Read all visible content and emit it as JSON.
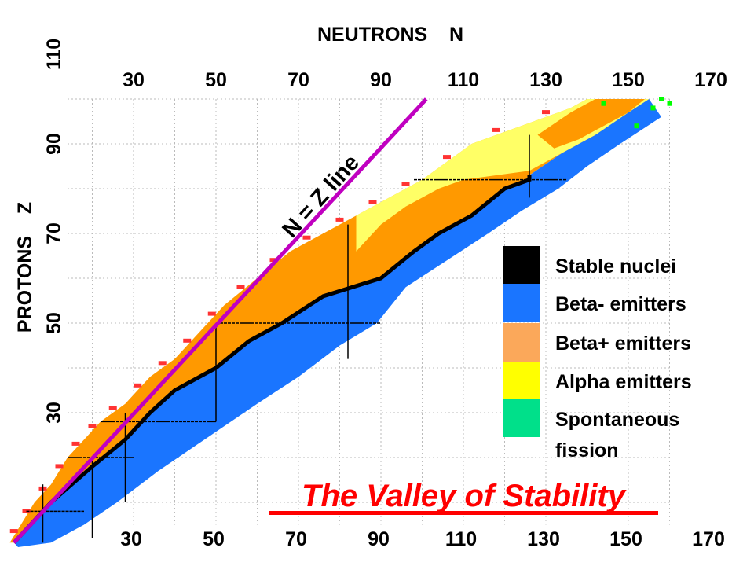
{
  "chart_data": {
    "type": "heatmap",
    "title": "The Valley of Stability",
    "xlabel": "NEUTRONS    N",
    "ylabel": "PROTONS    Z",
    "xlim": [
      0,
      170
    ],
    "ylim": [
      0,
      110
    ],
    "x_ticks_top": [
      "30",
      "50",
      "70",
      "90",
      "110",
      "130",
      "150",
      "170"
    ],
    "x_ticks_bottom": [
      "30",
      "50",
      "70",
      "90",
      "110",
      "130",
      "150",
      "170"
    ],
    "y_ticks": [
      "30",
      "50",
      "70",
      "90",
      "110"
    ],
    "grid": true,
    "annotation": "N = Z line",
    "nz_line": [
      [
        1,
        1
      ],
      [
        101,
        100
      ]
    ],
    "legend_position": "right",
    "legend": [
      {
        "label": "Stable nuclei",
        "color": "#000000"
      },
      {
        "label": "Beta- emitters",
        "color": "#1a75ff"
      },
      {
        "label": "Beta+ emitters",
        "color": "#fba85a"
      },
      {
        "label": "Alpha emitters",
        "color": "#ffff00"
      },
      {
        "label": "Spontaneous",
        "label2": "fission",
        "color": "#00e08a"
      }
    ],
    "region_colors": {
      "beta_plus": "#ff9900",
      "beta_minus": "#1a75ff",
      "alpha": "#ffff66",
      "stable": "#000000",
      "fission": "#00ff00",
      "proton_emitters": "#ff3333",
      "nz_line": "#c000c0",
      "title": "#ff0000"
    },
    "proton_rich_edge": [
      [
        0,
        1
      ],
      [
        2,
        4
      ],
      [
        6,
        10
      ],
      [
        10,
        14
      ],
      [
        14,
        20
      ],
      [
        18,
        24
      ],
      [
        22,
        28
      ],
      [
        28,
        32
      ],
      [
        34,
        38
      ],
      [
        40,
        42
      ],
      [
        46,
        48
      ],
      [
        52,
        54
      ],
      [
        60,
        60
      ],
      [
        68,
        66
      ],
      [
        76,
        70
      ],
      [
        84,
        74
      ],
      [
        92,
        78
      ],
      [
        100,
        82
      ],
      [
        112,
        90
      ],
      [
        124,
        94
      ],
      [
        136,
        98
      ],
      [
        140,
        100
      ],
      [
        163,
        100
      ]
    ],
    "neutron_rich_edge": [
      [
        163,
        100
      ],
      [
        158,
        96
      ],
      [
        148,
        90
      ],
      [
        140,
        85
      ],
      [
        133,
        80
      ],
      [
        124,
        75
      ],
      [
        116,
        70
      ],
      [
        106,
        64
      ],
      [
        96,
        58
      ],
      [
        89,
        50
      ],
      [
        80,
        45
      ],
      [
        70,
        38
      ],
      [
        60,
        32
      ],
      [
        52,
        27
      ],
      [
        44,
        22
      ],
      [
        36,
        17
      ],
      [
        26,
        10
      ],
      [
        18,
        5
      ],
      [
        10,
        1
      ],
      [
        2,
        0
      ]
    ],
    "stable_line": [
      [
        1,
        1
      ],
      [
        10,
        10
      ],
      [
        20,
        18
      ],
      [
        28,
        24
      ],
      [
        34,
        30
      ],
      [
        40,
        35
      ],
      [
        50,
        40
      ],
      [
        58,
        46
      ],
      [
        66,
        50
      ],
      [
        76,
        56
      ],
      [
        90,
        60
      ],
      [
        98,
        66
      ],
      [
        104,
        70
      ],
      [
        112,
        74
      ],
      [
        120,
        80
      ],
      [
        126,
        82
      ],
      [
        126,
        83
      ]
    ],
    "beta_minus_heavy_boundary": [
      [
        126,
        83
      ],
      [
        134,
        88
      ],
      [
        142,
        92
      ],
      [
        150,
        97
      ],
      [
        155,
        100
      ]
    ],
    "alpha_region": [
      [
        84,
        74
      ],
      [
        92,
        78
      ],
      [
        100,
        82
      ],
      [
        112,
        90
      ],
      [
        124,
        94
      ],
      [
        136,
        98
      ],
      [
        140,
        100
      ],
      [
        155,
        100
      ],
      [
        150,
        97
      ],
      [
        142,
        92
      ],
      [
        134,
        88
      ],
      [
        126,
        84
      ],
      [
        110,
        82
      ],
      [
        104,
        80
      ],
      [
        96,
        76
      ],
      [
        90,
        72
      ],
      [
        86,
        68
      ],
      [
        84,
        66
      ]
    ],
    "heavy_beta_plus_patch": [
      [
        128,
        92
      ],
      [
        136,
        97
      ],
      [
        142,
        100
      ],
      [
        154,
        100
      ],
      [
        150,
        97
      ],
      [
        144,
        94
      ],
      [
        138,
        91
      ],
      [
        132,
        89
      ]
    ],
    "fission_points": [
      [
        158,
        100
      ],
      [
        160,
        99
      ],
      [
        144,
        99
      ],
      [
        152,
        94
      ],
      [
        156,
        98
      ]
    ],
    "magic_lines": {
      "Z": [
        [
          8,
          4,
          18
        ],
        [
          20,
          14,
          30
        ],
        [
          28,
          22,
          50
        ],
        [
          50,
          50,
          90
        ],
        [
          82,
          98,
          135
        ]
      ],
      "N": [
        [
          8,
          1,
          14
        ],
        [
          20,
          2,
          20
        ],
        [
          28,
          10,
          30
        ],
        [
          50,
          28,
          50
        ],
        [
          82,
          42,
          72
        ],
        [
          126,
          78,
          92
        ]
      ]
    }
  }
}
